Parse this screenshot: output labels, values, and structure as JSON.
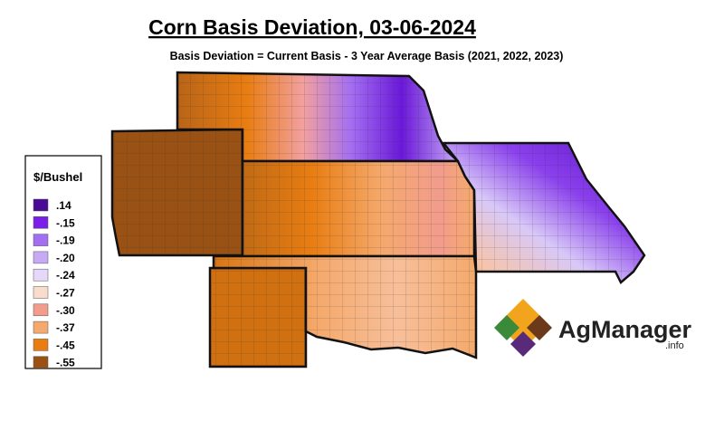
{
  "header": {
    "title": "Corn Basis Deviation, 03-06-2024",
    "subtitle": "Basis Deviation = Current Basis - 3 Year Average Basis (2021, 2022, 2023)"
  },
  "legend": {
    "title": "$/Bushel",
    "items": [
      {
        "label": ".14",
        "color": "#4b0a96"
      },
      {
        "label": "-.15",
        "color": "#7a1fe8"
      },
      {
        "label": "-.19",
        "color": "#a36ef2"
      },
      {
        "label": "-.20",
        "color": "#c7aaf6"
      },
      {
        "label": "-.24",
        "color": "#e6d8f8"
      },
      {
        "label": "-.27",
        "color": "#f9dccb"
      },
      {
        "label": "-.30",
        "color": "#f29c8c"
      },
      {
        "label": "-.37",
        "color": "#f5a96c"
      },
      {
        "label": "-.45",
        "color": "#e97d12"
      },
      {
        "label": "-.55",
        "color": "#9a5214"
      }
    ]
  },
  "logo": {
    "name": "AgManager",
    "suffix": ".info"
  }
}
